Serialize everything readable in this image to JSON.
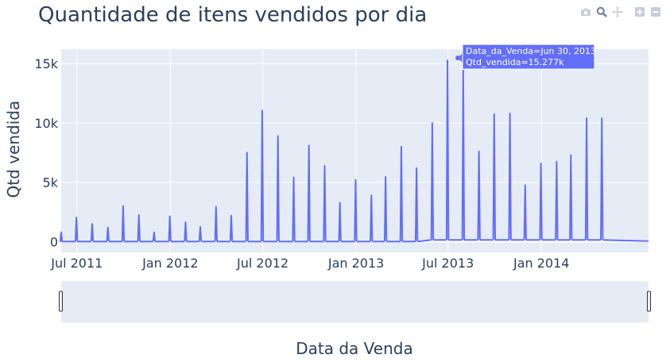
{
  "toolbar": {
    "icons": [
      "camera-icon",
      "zoom-icon",
      "pan-icon",
      "zoom-in-icon",
      "zoom-out-icon"
    ]
  },
  "chart_data": {
    "type": "line",
    "title": "Quantidade de itens vendidos por dia",
    "xlabel": "Data da Venda",
    "ylabel": "Qtd vendida",
    "x_tick_labels": [
      "Jul 2011",
      "Jan 2012",
      "Jul 2012",
      "Jan 2013",
      "Jul 2013",
      "Jan 2014"
    ],
    "y_tick_labels": [
      "0",
      "5k",
      "10k",
      "15k"
    ],
    "ylim": [
      -900,
      16200
    ],
    "xlim": [
      "2011-05-31",
      "2014-07-31"
    ],
    "grid": true,
    "line_color": "#636efa",
    "plot_bg": "#e5ecf6",
    "baseline_segments": [
      {
        "from": "2011-05-31",
        "to": "2013-05-31",
        "value": 20
      },
      {
        "from": "2013-05-31",
        "to": "2014-06-30",
        "value": 150
      },
      {
        "from": "2014-06-30",
        "to": "2014-07-31",
        "value": 50
      }
    ],
    "peaks": [
      {
        "date": "2011-05-31",
        "value": 800
      },
      {
        "date": "2011-06-30",
        "value": 2050
      },
      {
        "date": "2011-07-31",
        "value": 1500
      },
      {
        "date": "2011-08-31",
        "value": 1200
      },
      {
        "date": "2011-09-30",
        "value": 3000
      },
      {
        "date": "2011-10-31",
        "value": 2250
      },
      {
        "date": "2011-11-30",
        "value": 800
      },
      {
        "date": "2011-12-31",
        "value": 2150
      },
      {
        "date": "2012-01-31",
        "value": 1650
      },
      {
        "date": "2012-02-29",
        "value": 1250
      },
      {
        "date": "2012-03-31",
        "value": 2950
      },
      {
        "date": "2012-04-30",
        "value": 2200
      },
      {
        "date": "2012-05-31",
        "value": 7500
      },
      {
        "date": "2012-06-30",
        "value": 11050
      },
      {
        "date": "2012-07-31",
        "value": 8900
      },
      {
        "date": "2012-08-31",
        "value": 5400
      },
      {
        "date": "2012-09-30",
        "value": 8100
      },
      {
        "date": "2012-10-31",
        "value": 6400
      },
      {
        "date": "2012-11-30",
        "value": 3300
      },
      {
        "date": "2012-12-31",
        "value": 5200
      },
      {
        "date": "2013-01-31",
        "value": 3900
      },
      {
        "date": "2013-02-28",
        "value": 5450
      },
      {
        "date": "2013-03-31",
        "value": 8000
      },
      {
        "date": "2013-04-30",
        "value": 6200
      },
      {
        "date": "2013-05-31",
        "value": 10000
      },
      {
        "date": "2013-06-30",
        "value": 15277
      },
      {
        "date": "2013-07-31",
        "value": 14400
      },
      {
        "date": "2013-08-31",
        "value": 7600
      },
      {
        "date": "2013-09-30",
        "value": 10750
      },
      {
        "date": "2013-10-31",
        "value": 10800
      },
      {
        "date": "2013-11-30",
        "value": 4750
      },
      {
        "date": "2013-12-31",
        "value": 6600
      },
      {
        "date": "2014-01-31",
        "value": 6750
      },
      {
        "date": "2014-02-28",
        "value": 7300
      },
      {
        "date": "2014-03-31",
        "value": 10400
      },
      {
        "date": "2014-04-30",
        "value": 10400
      }
    ],
    "hover": {
      "line1": "Data_da_Venda=Jun 30, 2013",
      "line2": "Qtd_vendida=15.277k"
    }
  }
}
